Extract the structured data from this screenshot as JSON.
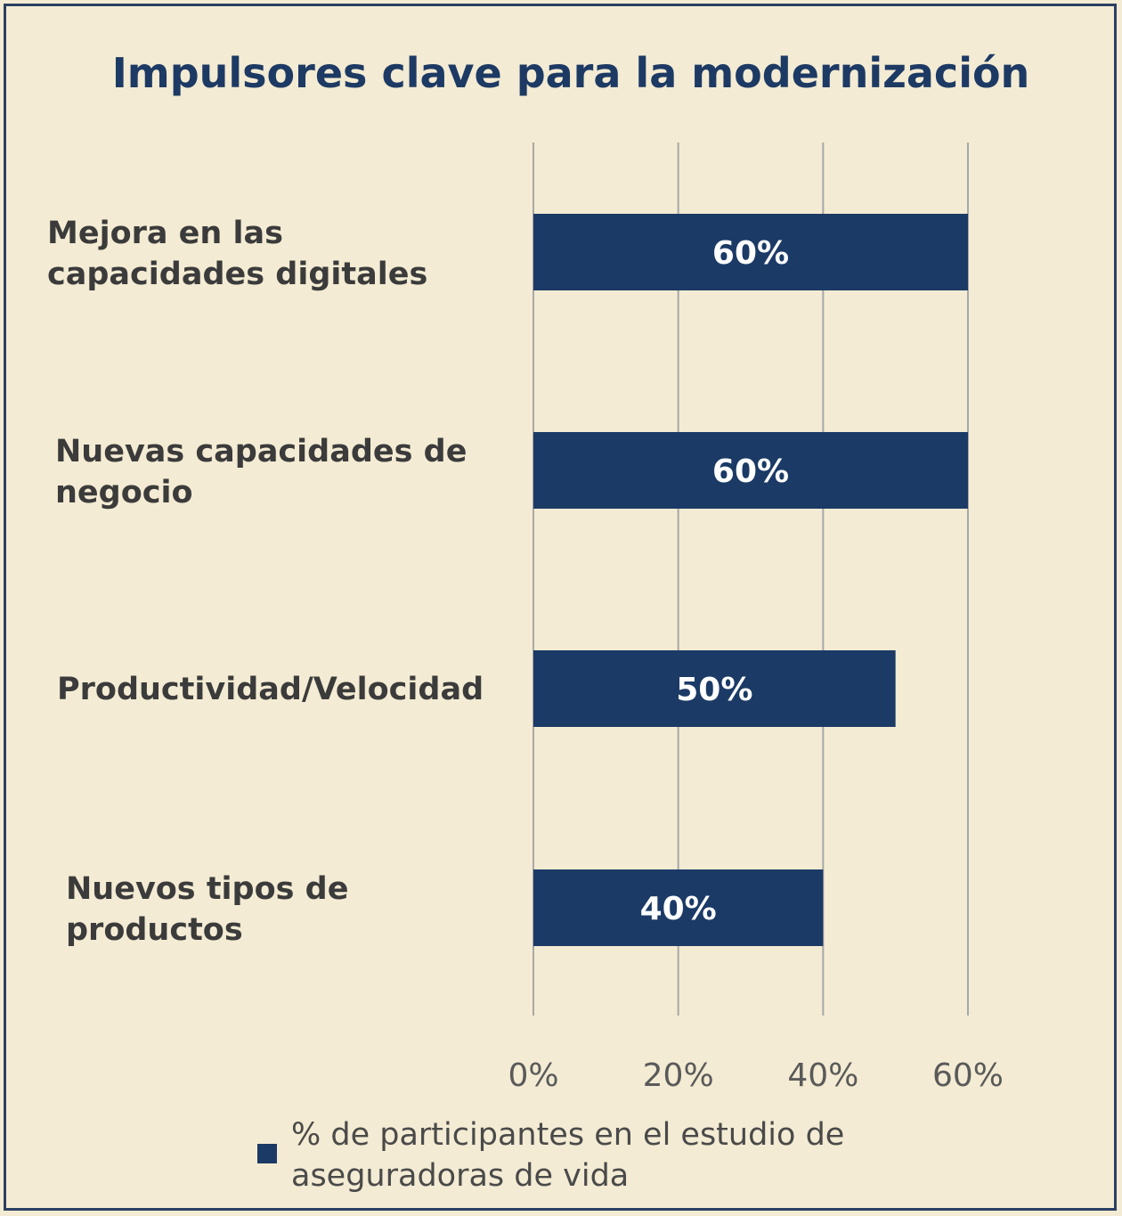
{
  "chart_data": {
    "type": "bar",
    "orientation": "horizontal",
    "title": "Impulsores clave para la modernización",
    "categories": [
      [
        "Mejora en las",
        "capacidades digitales"
      ],
      [
        "Nuevas capacidades de",
        "negocio"
      ],
      [
        "Productividad/Velocidad"
      ],
      [
        "Nuevos tipos de",
        "productos"
      ]
    ],
    "series": [
      {
        "name": "% de participantes en el estudio de aseguradoras de vida",
        "legend_lines": [
          "% de participantes en el estudio de",
          "aseguradoras de vida"
        ],
        "values": [
          60,
          60,
          50,
          40
        ],
        "data_labels": [
          "60%",
          "60%",
          "50%",
          "40%"
        ],
        "color": "#1B3A66"
      }
    ],
    "xlim": [
      0,
      60
    ],
    "ticks": [
      0,
      20,
      40,
      60
    ],
    "tick_labels": [
      "0%",
      "20%",
      "40%",
      "60%"
    ],
    "grid": true,
    "legend_position": "bottom",
    "colors": {
      "background": "#F3EBD3",
      "border": "#2B3F63",
      "title": "#1D3A64",
      "bar": "#1B3A66",
      "grid": "#A8A8A8"
    }
  }
}
